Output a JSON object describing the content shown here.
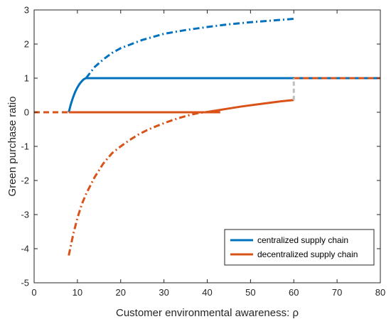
{
  "chart_data": {
    "type": "line",
    "title": "",
    "xlabel": "Customer environmental awareness:  ρ",
    "ylabel": "Green purchase ratio",
    "xlim": [
      0,
      80
    ],
    "ylim": [
      -5,
      3
    ],
    "xticks": [
      0,
      10,
      20,
      30,
      40,
      50,
      60,
      70,
      80
    ],
    "yticks": [
      3,
      2,
      1,
      0,
      -1,
      -2,
      -3,
      -4,
      -5
    ],
    "grid": false,
    "legend_position": "bottom-right",
    "colors": {
      "centralized": "#0072BD",
      "decentralized": "#D95319",
      "jump": "#BFBFBF"
    },
    "legend": [
      {
        "name": "centralized supply chain",
        "color": "#0072BD"
      },
      {
        "name": "decentralized supply chain",
        "color": "#D95319"
      }
    ],
    "series": [
      {
        "name": "centralized supply chain",
        "color": "#0072BD",
        "segments": [
          {
            "style": "dashed",
            "x": [
              0,
              8
            ],
            "y": [
              0,
              0
            ]
          },
          {
            "style": "solid",
            "x": [
              8,
              8.5,
              9,
              9.5,
              10,
              10.5,
              11,
              11.5,
              12
            ],
            "y": [
              0.0,
              0.24,
              0.44,
              0.6,
              0.73,
              0.83,
              0.91,
              0.97,
              1.0
            ]
          },
          {
            "style": "solid",
            "x": [
              12,
              80
            ],
            "y": [
              1,
              1
            ]
          },
          {
            "style": "dashdot",
            "x": [
              12,
              14,
              16,
              18,
              20,
              25,
              30,
              35,
              40,
              45,
              50,
              55,
              60
            ],
            "y": [
              1.0,
              1.33,
              1.55,
              1.74,
              1.88,
              2.12,
              2.3,
              2.41,
              2.5,
              2.58,
              2.64,
              2.69,
              2.74
            ]
          }
        ]
      },
      {
        "name": "decentralized supply chain",
        "color": "#D95319",
        "segments": [
          {
            "style": "dashed",
            "x": [
              0,
              8
            ],
            "y": [
              0,
              0
            ]
          },
          {
            "style": "solid",
            "x": [
              8,
              43
            ],
            "y": [
              0,
              0
            ]
          },
          {
            "style": "dashdot",
            "x": [
              8,
              9,
              10,
              11,
              12,
              14,
              16,
              18,
              20,
              22,
              24,
              26,
              28,
              30,
              32,
              34,
              36,
              38,
              39.5
            ],
            "y": [
              -4.2,
              -3.6,
              -3.1,
              -2.7,
              -2.4,
              -1.9,
              -1.5,
              -1.2,
              -1.0,
              -0.82,
              -0.66,
              -0.53,
              -0.42,
              -0.32,
              -0.23,
              -0.15,
              -0.08,
              -0.02,
              0.0
            ]
          },
          {
            "style": "solid",
            "x": [
              39.5,
              42,
              45,
              48,
              51,
              54,
              57,
              60
            ],
            "y": [
              0.0,
              0.05,
              0.11,
              0.17,
              0.22,
              0.27,
              0.32,
              0.36
            ]
          },
          {
            "style": "dashed",
            "x": [
              60,
              80
            ],
            "y": [
              1,
              1
            ]
          }
        ]
      }
    ],
    "jump": {
      "style": "dashed",
      "x": [
        60,
        60
      ],
      "y": [
        0.36,
        1.0
      ],
      "color": "#BFBFBF"
    }
  }
}
